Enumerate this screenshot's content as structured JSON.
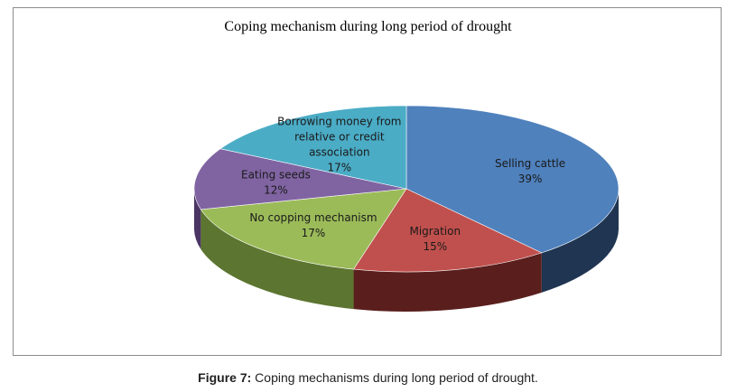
{
  "chart_data": {
    "type": "pie",
    "title": "Coping mechanism during long period of drought",
    "slices": [
      {
        "label_lines": [
          "Selling cattle"
        ],
        "value": 39,
        "pct": "39%",
        "color": "#4f81bd",
        "side": "#1f3552"
      },
      {
        "label_lines": [
          "Migration"
        ],
        "value": 15,
        "pct": "15%",
        "color": "#c0504d",
        "side": "#5a1f1d"
      },
      {
        "label_lines": [
          "No copping mechanism"
        ],
        "value": 17,
        "pct": "17%",
        "color": "#9bbb59",
        "side": "#5c7530"
      },
      {
        "label_lines": [
          "Eating seeds"
        ],
        "value": 12,
        "pct": "12%",
        "color": "#8064a2",
        "side": "#4a3563"
      },
      {
        "label_lines": [
          "Borrowing money from",
          "relative or credit",
          "association"
        ],
        "value": 17,
        "pct": "17%",
        "color": "#4bacc6",
        "side": "#24687a"
      }
    ],
    "legend": "none"
  },
  "caption": {
    "label": "Figure 7:",
    "text": " Coping mechanisms during long period of drought."
  }
}
